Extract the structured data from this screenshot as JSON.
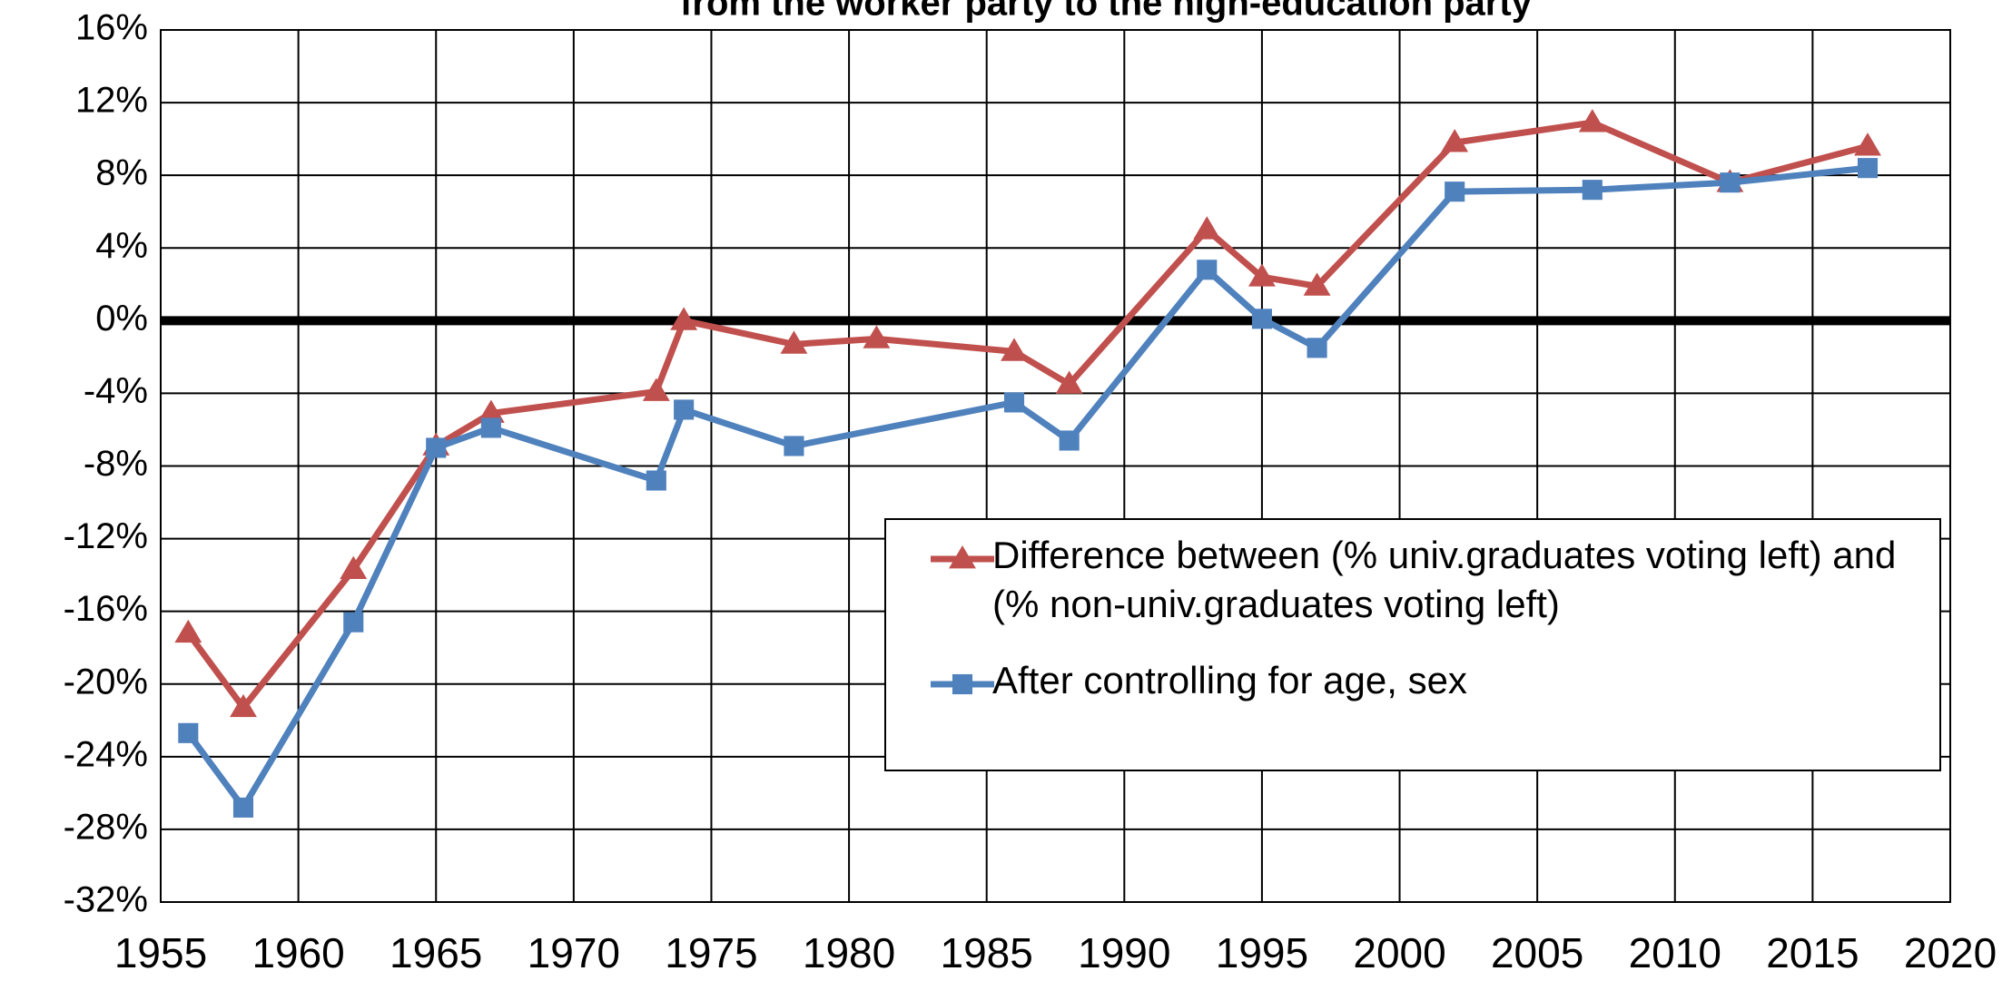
{
  "chart_data": {
    "type": "line",
    "title": "from the worker party to the high-education party",
    "xlim": [
      1955,
      2020
    ],
    "xticks": [
      1955,
      1960,
      1965,
      1970,
      1975,
      1980,
      1985,
      1990,
      1995,
      2000,
      2005,
      2010,
      2015,
      2020
    ],
    "ylim": [
      -32,
      16
    ],
    "yticks": [
      {
        "value": -32,
        "label": "-32%"
      },
      {
        "value": -28,
        "label": "-28%"
      },
      {
        "value": -24,
        "label": "-24%"
      },
      {
        "value": -20,
        "label": "-20%"
      },
      {
        "value": -16,
        "label": "-16%"
      },
      {
        "value": -12,
        "label": "-12%"
      },
      {
        "value": -8,
        "label": "-8%"
      },
      {
        "value": -4,
        "label": "-4%"
      },
      {
        "value": 0,
        "label": "0%"
      },
      {
        "value": 4,
        "label": "4%"
      },
      {
        "value": 8,
        "label": "8%"
      },
      {
        "value": 12,
        "label": "12%"
      },
      {
        "value": 16,
        "label": "16%"
      }
    ],
    "grid": true,
    "zero_line": true,
    "legend_position": "center right",
    "series": [
      {
        "name": "Difference between (% univ.graduates voting left) and (% non-univ.graduates voting left)",
        "color": "#c0504d",
        "marker": "triangle",
        "x": [
          1956,
          1958,
          1962,
          1965,
          1967,
          1973,
          1974,
          1978,
          1981,
          1986,
          1988,
          1993,
          1995,
          1997,
          2002,
          2007,
          2012,
          2017
        ],
        "values": [
          -17.2,
          -21.3,
          -13.7,
          -6.9,
          -5.1,
          -3.9,
          0,
          -1.3,
          -1.0,
          -1.7,
          -3.5,
          5.0,
          2.4,
          1.9,
          9.8,
          10.9,
          7.6,
          9.6
        ]
      },
      {
        "name": "After controlling for age, sex",
        "color": "#4f81bd",
        "marker": "square",
        "x": [
          1956,
          1958,
          1962,
          1965,
          1967,
          1973,
          1974,
          1978,
          1986,
          1988,
          1993,
          1995,
          1997,
          2002,
          2007,
          2012,
          2017
        ],
        "values": [
          -22.7,
          -26.8,
          -16.6,
          -7.0,
          -5.9,
          -8.8,
          -4.9,
          -6.9,
          -4.5,
          -6.6,
          2.8,
          0.1,
          -1.5,
          7.1,
          7.2,
          7.6,
          8.4
        ]
      }
    ]
  }
}
